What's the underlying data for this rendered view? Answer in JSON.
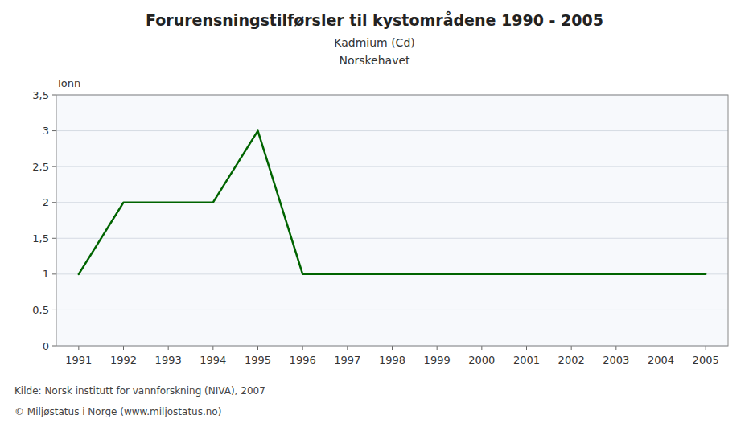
{
  "chart_data": {
    "type": "line",
    "title": "Forurensningstilførsler til kystområdene 1990 - 2005",
    "subtitle": [
      "Kadmium (Cd)",
      "Norskehavet"
    ],
    "y_label": "Tonn",
    "x": [
      1991,
      1992,
      1993,
      1994,
      1995,
      1996,
      1997,
      1998,
      1999,
      2000,
      2001,
      2002,
      2003,
      2004,
      2005
    ],
    "values": [
      1.0,
      2.0,
      2.0,
      2.0,
      3.0,
      1.0,
      1.0,
      1.0,
      1.0,
      1.0,
      1.0,
      1.0,
      1.0,
      1.0,
      1.0
    ],
    "color": "#006400",
    "xlim": [
      1990.5,
      2005.5
    ],
    "xticks": [
      1991,
      1992,
      1993,
      1994,
      1995,
      1996,
      1997,
      1998,
      1999,
      2000,
      2001,
      2002,
      2003,
      2004,
      2005
    ],
    "ylim": [
      0,
      3.5
    ],
    "yticks": [
      0,
      {
        "value": 0.5,
        "label": "0,5"
      },
      1,
      {
        "value": 1.5,
        "label": "1,5"
      },
      2,
      {
        "value": 2.5,
        "label": "2,5"
      },
      3,
      {
        "value": 3.5,
        "label": "3,5"
      }
    ],
    "grid": true,
    "annotations": [
      "Kilde: Norsk institutt for vannforskning (NIVA), 2007",
      "© Miljøstatus i Norge (www.miljostatus.no)"
    ]
  }
}
